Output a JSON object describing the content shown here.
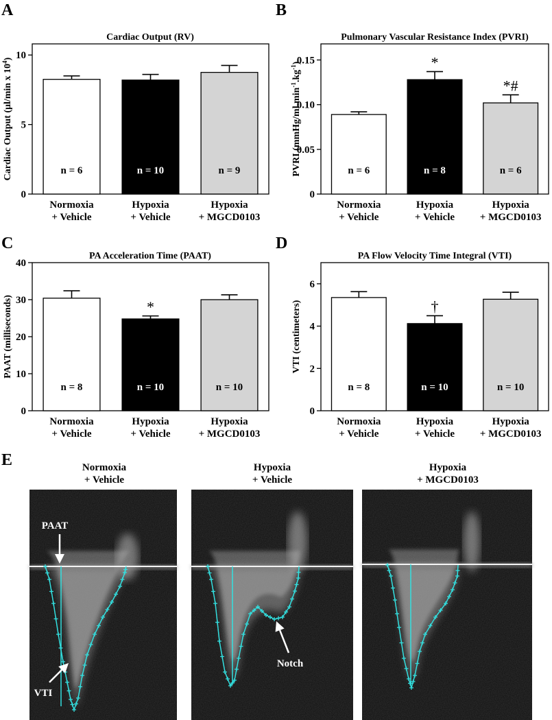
{
  "chart_data": [
    {
      "panel": "A",
      "type": "bar",
      "title": "Cardiac Output (RV)",
      "ylabel": "Cardiac Output (μl/min x 10⁴)",
      "ylim": [
        0,
        10.8
      ],
      "yticks": [
        0,
        5,
        10
      ],
      "categories": [
        "Normoxia\n+ Vehicle",
        "Hypoxia\n+ Vehicle",
        "Hypoxia\n+ MGCD0103"
      ],
      "values": [
        8.25,
        8.2,
        8.75
      ],
      "errors": [
        0.25,
        0.4,
        0.5
      ],
      "n_labels": [
        "n = 6",
        "n = 10",
        "n = 9"
      ],
      "annotations": [
        "",
        "",
        ""
      ],
      "colors": [
        "#ffffff",
        "#000000",
        "#d4d4d4"
      ]
    },
    {
      "panel": "B",
      "type": "bar",
      "title": "Pulmonary Vascular Resistance Index (PVRI)",
      "ylabel": "PVRI (mmHg/ml.min⁻¹.kg⁻¹)",
      "ylim": [
        0,
        0.168
      ],
      "yticks": [
        "0",
        "0.05",
        "0.10",
        "0.15"
      ],
      "ytick_values": [
        0,
        0.05,
        0.1,
        0.15
      ],
      "categories": [
        "Normoxia\n+ Vehicle",
        "Hypoxia\n+ Vehicle",
        "Hypoxia\n+ MGCD0103"
      ],
      "values": [
        0.089,
        0.128,
        0.102
      ],
      "errors": [
        0.003,
        0.009,
        0.009
      ],
      "n_labels": [
        "n = 6",
        "n = 8",
        "n = 6"
      ],
      "annotations": [
        "",
        "*",
        "*#"
      ],
      "colors": [
        "#ffffff",
        "#000000",
        "#d4d4d4"
      ]
    },
    {
      "panel": "C",
      "type": "bar",
      "title": "PA Acceleration Time (PAAT)",
      "ylabel": "PAAT (milliseconds)",
      "ylim": [
        0,
        40
      ],
      "yticks": [
        0,
        10,
        20,
        30,
        40
      ],
      "categories": [
        "Normoxia\n+ Vehicle",
        "Hypoxia\n+ Vehicle",
        "Hypoxia\n+ MGCD0103"
      ],
      "values": [
        30.4,
        24.8,
        30.0
      ],
      "errors": [
        2.0,
        0.8,
        1.3
      ],
      "n_labels": [
        "n = 8",
        "n = 10",
        "n = 10"
      ],
      "annotations": [
        "",
        "*",
        ""
      ],
      "colors": [
        "#ffffff",
        "#000000",
        "#d4d4d4"
      ]
    },
    {
      "panel": "D",
      "type": "bar",
      "title": "PA Flow Velocity Time Integral (VTI)",
      "ylabel": "VTI (centimeters)",
      "ylim": [
        0,
        7
      ],
      "yticks": [
        0,
        2,
        4,
        6
      ],
      "categories": [
        "Normoxia\n+ Vehicle",
        "Hypoxia\n+ Vehicle",
        "Hypoxia\n+ MGCD0103"
      ],
      "values": [
        5.35,
        4.12,
        5.27
      ],
      "errors": [
        0.28,
        0.37,
        0.33
      ],
      "n_labels": [
        "n = 8",
        "n = 10",
        "n = 10"
      ],
      "annotations": [
        "",
        "†",
        ""
      ],
      "colors": [
        "#ffffff",
        "#000000",
        "#d4d4d4"
      ]
    }
  ],
  "panel_e": {
    "letter": "E",
    "images": [
      {
        "title": "Normoxia\n+ Vehicle",
        "arrows": [
          "PAAT",
          "VTI"
        ]
      },
      {
        "title": "Hypoxia\n+ Vehicle",
        "arrows": [
          "Notch"
        ]
      },
      {
        "title": "Hypoxia\n+ MGCD0103",
        "arrows": []
      }
    ],
    "trace_color": "#33e0e0"
  }
}
